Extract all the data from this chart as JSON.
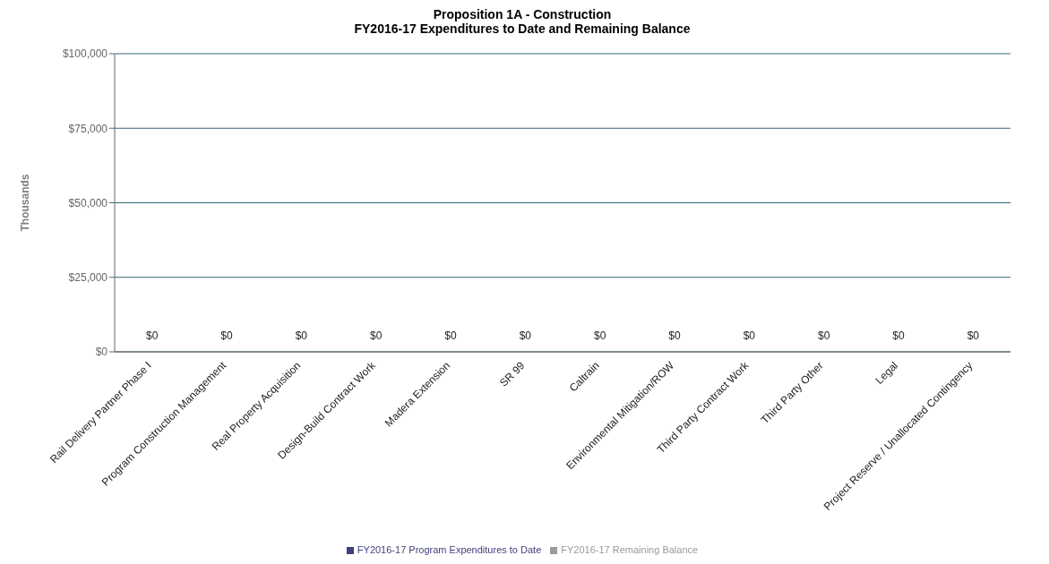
{
  "chart_data": {
    "type": "bar",
    "title": "Proposition 1A - Construction\nFY2016-17 Expenditures to Date and Remaining Balance",
    "ylabel": "Thousands",
    "categories": [
      "Rail Delivery Partner Phase I",
      "Program Construction Management",
      "Real Property Acquisition",
      "Design-Build Contract Work",
      "Madera Extension",
      "SR 99",
      "Caltrain",
      "Environmental Mitigation/ROW",
      "Third Party Contract Work",
      "Third Party Other",
      "Legal",
      "Project Reserve / Unallocated Contingency"
    ],
    "series": [
      {
        "name": "FY2016-17 Program Expenditures to Date",
        "color": "#3f3f7f",
        "values": [
          0,
          0,
          0,
          0,
          0,
          0,
          0,
          0,
          0,
          0,
          0,
          0
        ]
      },
      {
        "name": "FY2016-17 Remaining Balance",
        "color": "#9a9a9a",
        "values": [
          0,
          0,
          0,
          0,
          0,
          0,
          0,
          0,
          0,
          0,
          0,
          0
        ]
      }
    ],
    "totals": [
      "$0",
      "$0",
      "$0",
      "$0",
      "$0",
      "$0",
      "$0",
      "$0",
      "$0",
      "$0",
      "$0",
      "$0"
    ],
    "ylim": [
      0,
      100000
    ],
    "yticks": [
      {
        "value": 0,
        "label": "$0"
      },
      {
        "value": 25000,
        "label": "$25,000"
      },
      {
        "value": 50000,
        "label": "$50,000"
      },
      {
        "value": 75000,
        "label": "$75,000"
      },
      {
        "value": 100000,
        "label": "$100,000"
      }
    ],
    "grid": "y",
    "legend": "bottom"
  }
}
